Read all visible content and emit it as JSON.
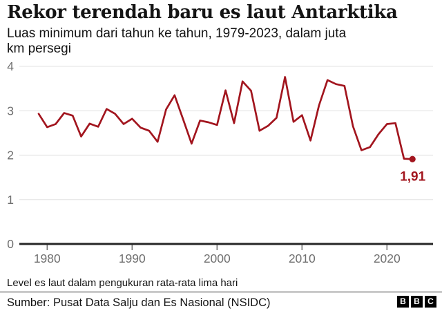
{
  "header": {
    "title": "Rekor terendah baru es laut Antarktika",
    "subtitle_line1": "Luas minimum dari tahun ke tahun, 1979-2023, dalam juta",
    "subtitle_line2": "km persegi"
  },
  "chart_data": {
    "type": "line",
    "title": "Rekor terendah baru es laut Antarktika",
    "subtitle": "Luas minimum dari tahun ke tahun, 1979-2023, dalam juta km persegi",
    "xlabel": "",
    "ylabel": "juta km persegi",
    "x": [
      1979,
      1980,
      1981,
      1982,
      1983,
      1984,
      1985,
      1986,
      1987,
      1988,
      1989,
      1990,
      1991,
      1992,
      1993,
      1994,
      1995,
      1996,
      1997,
      1998,
      1999,
      2000,
      2001,
      2002,
      2003,
      2004,
      2005,
      2006,
      2007,
      2008,
      2009,
      2010,
      2011,
      2012,
      2013,
      2014,
      2015,
      2016,
      2017,
      2018,
      2019,
      2020,
      2021,
      2022,
      2023
    ],
    "values": [
      2.93,
      2.63,
      2.7,
      2.95,
      2.89,
      2.42,
      2.71,
      2.64,
      3.04,
      2.93,
      2.7,
      2.82,
      2.62,
      2.55,
      2.3,
      3.03,
      3.35,
      2.81,
      2.26,
      2.78,
      2.74,
      2.68,
      3.46,
      2.72,
      3.66,
      3.45,
      2.55,
      2.66,
      2.84,
      3.76,
      2.75,
      2.9,
      2.33,
      3.12,
      3.69,
      3.6,
      3.56,
      2.65,
      2.11,
      2.18,
      2.47,
      2.7,
      2.72,
      1.92,
      1.91
    ],
    "ylim": [
      0,
      4
    ],
    "yticks": [
      0,
      1,
      2,
      3,
      4
    ],
    "xticks": [
      1980,
      1990,
      2000,
      2010,
      2020
    ],
    "grid": true,
    "legend": false,
    "end_marker": true,
    "annotation": {
      "text": "1,91",
      "x": 2023,
      "y": 1.91
    }
  },
  "footer": {
    "note": "Level es laut dalam pengukuran rata-rata lima hari",
    "source": "Sumber: Pusat Data Salju dan Es Nasional (NSIDC)",
    "logo": [
      "B",
      "B",
      "C"
    ]
  },
  "colors": {
    "line": "#a2151e",
    "grid": "#e6e6e6",
    "axis": "#262626",
    "tick_label": "#6f6f6f",
    "text": "#141414",
    "logo_bg": "#000000",
    "logo_text": "#ffffff"
  }
}
